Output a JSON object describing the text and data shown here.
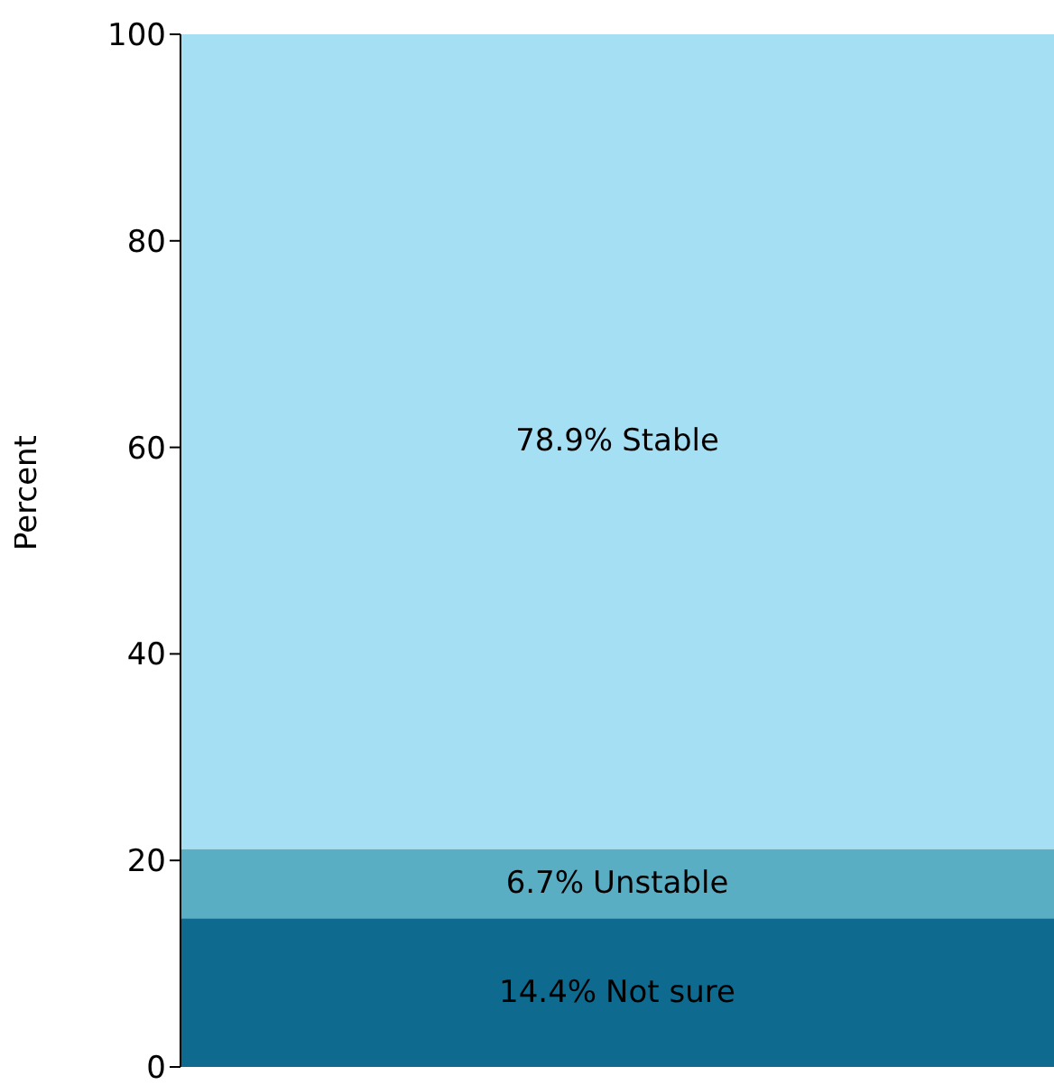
{
  "chart_data": {
    "type": "bar",
    "stacked": true,
    "ylabel": "Percent",
    "categories": [
      null
    ],
    "series": [
      {
        "name": "Not sure",
        "color": "#0e6b8f",
        "values": [
          14.4
        ],
        "value_labels": [
          "14.4%"
        ]
      },
      {
        "name": "Unstable",
        "color": "#5aaec4",
        "values": [
          6.7
        ],
        "value_labels": [
          "6.7%"
        ]
      },
      {
        "name": "Stable",
        "color": "#a5dff4",
        "values": [
          78.9
        ],
        "value_labels": [
          "78.9%"
        ]
      }
    ],
    "ylim": [
      0,
      100
    ],
    "yticks": [
      0,
      20,
      40,
      60,
      80,
      100
    ],
    "grid": false,
    "legend": false
  }
}
